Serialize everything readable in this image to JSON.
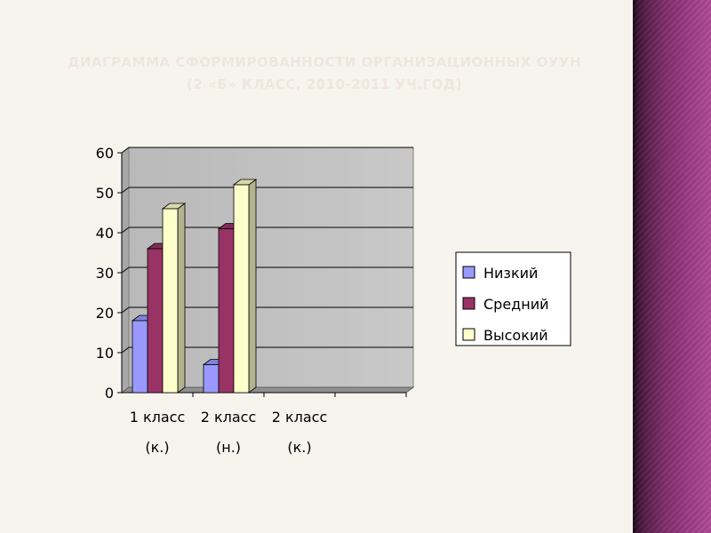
{
  "slide": {
    "title_line1": "ДИАГРАММА СФОРМИРОВАННОСТИ ОРГАНИЗАЦИОННЫХ ОУУН",
    "title_line2": "(2 «Б» КЛАСС, 2010-2011 УЧ.ГОД)"
  },
  "colors": {
    "background": "#f7f4ee",
    "panel_accent": "#8e3679",
    "title": "#f0e6dc",
    "plot_wall": "#c0c0c0",
    "grid": "#000000"
  },
  "chart_data": {
    "type": "bar",
    "title": "",
    "xlabel": "",
    "ylabel": "",
    "ylim": [
      0,
      60
    ],
    "yticks": [
      0,
      10,
      20,
      30,
      40,
      50,
      60
    ],
    "grid": true,
    "three_d": true,
    "legend_position": "right",
    "categories": [
      [
        "1 класс",
        "(к.)"
      ],
      [
        "2 класс",
        "(н.)"
      ],
      [
        "2 класс",
        "(к.)"
      ],
      [
        "",
        ""
      ]
    ],
    "series": [
      {
        "name": "Низкий",
        "color": "#9999ff",
        "values": [
          18,
          7,
          0,
          0
        ]
      },
      {
        "name": "Средний",
        "color": "#993366",
        "values": [
          36,
          41,
          0,
          0
        ]
      },
      {
        "name": "Высокий",
        "color": "#ffffcc",
        "values": [
          46,
          52,
          0,
          0
        ]
      }
    ]
  }
}
